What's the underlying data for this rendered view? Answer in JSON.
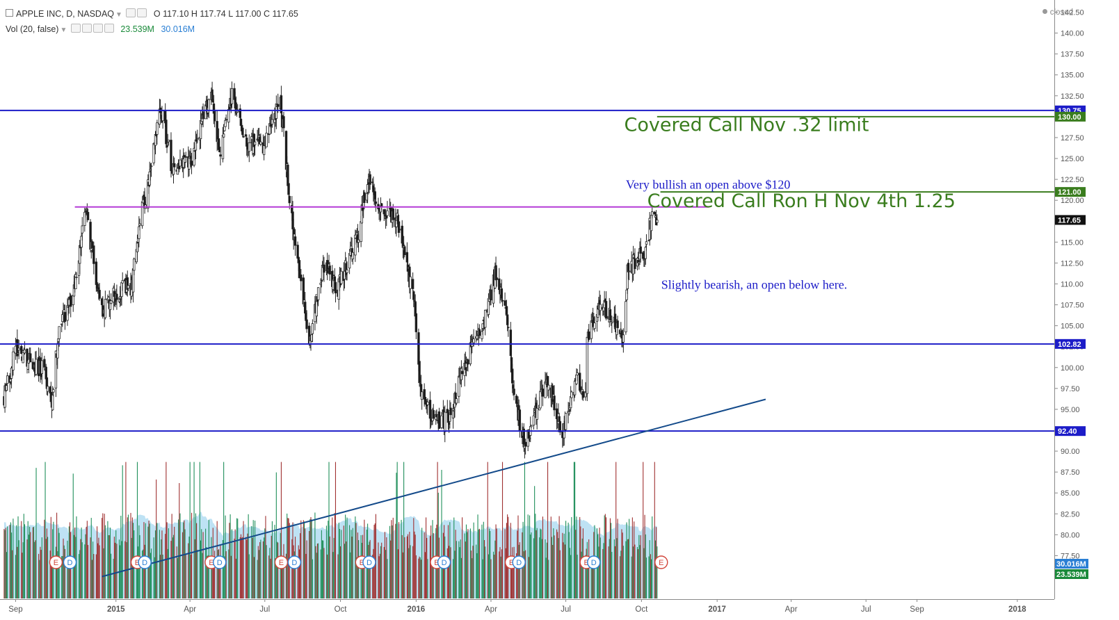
{
  "legend": {
    "symbol": "APPLE INC, D, NASDAQ",
    "o_label": "O",
    "o": "117.10",
    "h_label": "H",
    "h": "117.74",
    "l_label": "L",
    "l": "117.00",
    "c_label": "C",
    "c": "117.65",
    "vol_name": "Vol (20, false)",
    "vol_current": "23.539M",
    "vol_ma": "30.016M"
  },
  "status": "closed",
  "colors": {
    "up": "#2e7d32",
    "down": "#8b1a1a",
    "candle_body": "#1a1a1a",
    "hline": "#1c1cc8",
    "magenta": "#b43bd6",
    "green_line": "#3a7d1e",
    "trend": "#134a8a",
    "vol_up": "#1f8f5a",
    "vol_down": "#a03030",
    "vol_ma_fill": "#a8d8f0",
    "earnings": "#d2453a",
    "dividend": "#2a7fd4"
  },
  "chart_data": {
    "type": "candlestick",
    "symbol": "AAPL",
    "interval": "D",
    "y_axis": {
      "min": 75,
      "max": 142.5,
      "ticks": [
        77.5,
        80,
        82.5,
        85,
        87.5,
        90,
        92.5,
        95,
        97.5,
        100,
        102.5,
        105,
        107.5,
        110,
        112.5,
        115,
        117.5,
        120,
        122.5,
        125,
        127.5,
        130,
        132.5,
        135,
        137.5,
        140,
        142.5
      ]
    },
    "x_axis": {
      "labels": [
        "Sep",
        "2015",
        "Apr",
        "Jul",
        "Oct",
        "2016",
        "Apr",
        "Jul",
        "Oct",
        "2017",
        "Apr",
        "Jul",
        "Sep",
        "2018"
      ],
      "label_dates": [
        "2014-09-01",
        "2015-01-01",
        "2015-04-01",
        "2015-07-01",
        "2015-10-01",
        "2016-01-01",
        "2016-04-01",
        "2016-07-01",
        "2016-10-01",
        "2017-01-01",
        "2017-04-01",
        "2017-07-01",
        "2017-09-01",
        "2018-01-01"
      ]
    },
    "price_path": [
      [
        "2014-08-18",
        96.5
      ],
      [
        "2014-09-02",
        102.5
      ],
      [
        "2014-09-19",
        100.8
      ],
      [
        "2014-10-06",
        99.5
      ],
      [
        "2014-10-15",
        96.0
      ],
      [
        "2014-10-24",
        105.2
      ],
      [
        "2014-11-10",
        108.5
      ],
      [
        "2014-11-25",
        118.8
      ],
      [
        "2014-12-15",
        106.8
      ],
      [
        "2015-01-02",
        109.2
      ],
      [
        "2015-01-20",
        109.5
      ],
      [
        "2015-01-30",
        118.0
      ],
      [
        "2015-02-10",
        122.0
      ],
      [
        "2015-02-24",
        131.5
      ],
      [
        "2015-03-10",
        124.0
      ],
      [
        "2015-04-01",
        124.5
      ],
      [
        "2015-04-27",
        133.0
      ],
      [
        "2015-05-07",
        125.5
      ],
      [
        "2015-05-22",
        132.5
      ],
      [
        "2015-06-10",
        127.0
      ],
      [
        "2015-07-01",
        126.5
      ],
      [
        "2015-07-20",
        132.0
      ],
      [
        "2015-07-28",
        123.3
      ],
      [
        "2015-08-06",
        115.0
      ],
      [
        "2015-08-24",
        103.1
      ],
      [
        "2015-09-10",
        112.5
      ],
      [
        "2015-09-28",
        109.5
      ],
      [
        "2015-10-22",
        115.5
      ],
      [
        "2015-11-03",
        122.5
      ],
      [
        "2015-11-20",
        119.0
      ],
      [
        "2015-12-10",
        117.5
      ],
      [
        "2015-12-30",
        107.5
      ],
      [
        "2016-01-07",
        96.5
      ],
      [
        "2016-01-27",
        93.5
      ],
      [
        "2016-02-10",
        94.0
      ],
      [
        "2016-03-01",
        100.5
      ],
      [
        "2016-03-22",
        105.5
      ],
      [
        "2016-04-06",
        111.0
      ],
      [
        "2016-04-22",
        105.7
      ],
      [
        "2016-04-28",
        97.8
      ],
      [
        "2016-05-12",
        90.3
      ],
      [
        "2016-06-08",
        99.0
      ],
      [
        "2016-06-27",
        92.0
      ],
      [
        "2016-07-14",
        98.5
      ],
      [
        "2016-07-26",
        97.0
      ],
      [
        "2016-07-27",
        102.9
      ],
      [
        "2016-08-12",
        108.2
      ],
      [
        "2016-09-09",
        103.1
      ],
      [
        "2016-09-14",
        111.8
      ],
      [
        "2016-09-27",
        113.0
      ],
      [
        "2016-10-07",
        114.0
      ],
      [
        "2016-10-12",
        117.5
      ],
      [
        "2016-10-20",
        117.65
      ]
    ],
    "horizontal_lines": [
      {
        "price": 130.75,
        "label": "130.75",
        "color": "#1c1cc8"
      },
      {
        "price": 130.0,
        "label": "130.00",
        "color": "#3a7d1e"
      },
      {
        "price": 121.0,
        "label": "121.00",
        "color": "#3a7d1e"
      },
      {
        "price": 119.2,
        "color": "#b43bd6"
      },
      {
        "price": 102.82,
        "label": "102.82",
        "color": "#1c1cc8"
      },
      {
        "price": 92.4,
        "label": "92.40",
        "color": "#1c1cc8"
      }
    ],
    "current_price": {
      "price": 117.65,
      "label": "117.65"
    },
    "volume_labels": {
      "ma": "30.016M",
      "current": "23.539M"
    },
    "trendline": [
      [
        "2014-12-15",
        75.0
      ],
      [
        "2017-03-01",
        96.2
      ]
    ],
    "earnings_dates": [
      "2014-10-20",
      "2015-01-27",
      "2015-04-27",
      "2015-07-21",
      "2015-10-27",
      "2016-01-26",
      "2016-04-26",
      "2016-07-26",
      "2016-10-25"
    ],
    "dividend_dates": [
      "2014-11-06",
      "2015-02-05",
      "2015-05-07",
      "2015-08-06",
      "2015-11-05",
      "2016-02-04",
      "2016-05-05",
      "2016-08-04"
    ],
    "annotations": [
      {
        "text": "Covered Call Nov .32 limit",
        "price": 128.3,
        "date": "2016-09-10",
        "color": "#3a7d1e",
        "font": "sans",
        "size": 27
      },
      {
        "text": "Very bullish an open above $120",
        "price": 121.4,
        "date": "2016-09-12",
        "color": "#1c1cc8",
        "font": "serif",
        "size": 18
      },
      {
        "text": "Covered Call Ron H Nov 4th 1.25",
        "price": 119.2,
        "date": "2016-10-08",
        "color": "#3a7d1e",
        "font": "sans",
        "size": 27
      },
      {
        "text": "Slightly bearish, an open below here.",
        "price": 109.4,
        "date": "2016-10-25",
        "color": "#1c1cc8",
        "font": "serif",
        "size": 18
      }
    ]
  }
}
